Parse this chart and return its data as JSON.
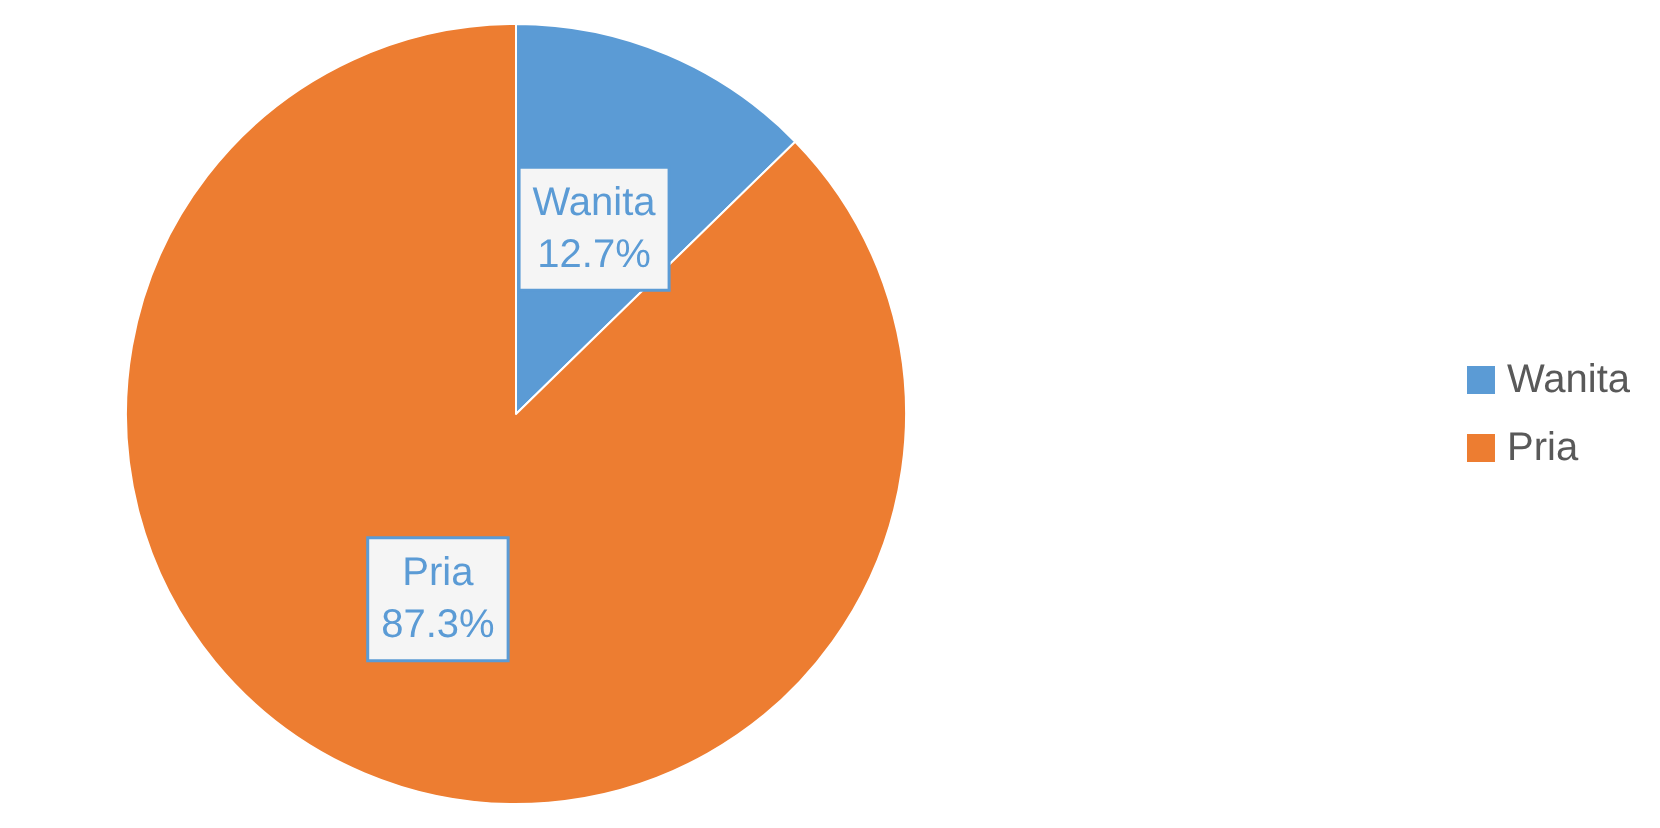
{
  "chart_data": {
    "type": "pie",
    "categories": [
      "Wanita",
      "Pria"
    ],
    "values": [
      12.7,
      87.3
    ],
    "colors": [
      "#5b9bd5",
      "#ed7d31"
    ],
    "value_labels": [
      "12.7%",
      "87.3%"
    ],
    "legend": "right"
  }
}
